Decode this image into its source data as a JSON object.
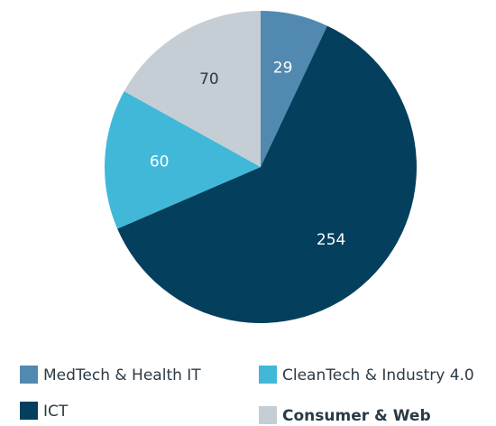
{
  "chart_data": {
    "type": "pie",
    "categories": [
      "MedTech & Health IT",
      "ICT",
      "CleanTech & Industry 4.0",
      "Consumer & Web"
    ],
    "values": [
      29,
      254,
      60,
      70
    ],
    "colors": [
      "#5289b0",
      "#053f5e",
      "#41b8d8",
      "#c5cdd5"
    ]
  }
}
